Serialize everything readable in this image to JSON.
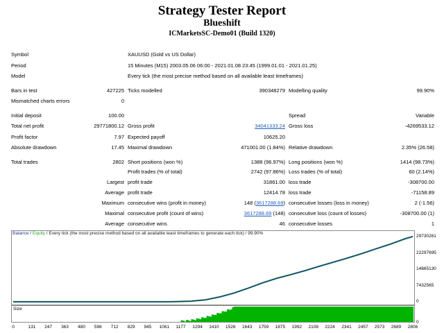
{
  "header": {
    "title": "Strategy Tester Report",
    "expert": "Blueshift",
    "server": "ICMarketsSC-Demo01 (Build 1320)"
  },
  "info": {
    "symbol_label": "Symbol",
    "symbol_value": "XAUUSD (Gold vs US Dollar)",
    "period_label": "Period",
    "period_value": "15 Minutes (M15) 2003.05.06 06:00 - 2021.01.08 23:45 (1999.01.01 - 2021.01.25)",
    "model_label": "Model",
    "model_value": "Every tick (the most precise method based on all available least timeframes)"
  },
  "stats": {
    "bars_label": "Bars in test",
    "bars_value": "427225",
    "ticks_label": "Ticks modelled",
    "ticks_value": "390348279",
    "quality_label": "Modelling quality",
    "quality_value": "99.90%",
    "mismatch_label": "Mismatched charts errors",
    "mismatch_value": "0",
    "deposit_label": "Initial deposit",
    "deposit_value": "100.00",
    "spread_label": "Spread",
    "spread_value": "Variable",
    "netprofit_label": "Total net profit",
    "netprofit_value": "29771800.12",
    "grossprofit_label": "Gross profit",
    "grossprofit_value": "34041333.24",
    "grossloss_label": "Gross loss",
    "grossloss_value": "-4269533.12",
    "pf_label": "Profit factor",
    "pf_value": "7.97",
    "payoff_label": "Expected payoff",
    "payoff_value": "10625.20",
    "absdd_label": "Absolute drawdown",
    "absdd_value": "17.45",
    "maxdd_label": "Maximal drawdown",
    "maxdd_value": "471001.00 (1.84%)",
    "reldd_label": "Relative drawdown",
    "reldd_value": "2.35% (26.58)",
    "trades_label": "Total trades",
    "trades_value": "2802",
    "short_label": "Short positions (won %)",
    "short_value": "1388 (96.97%)",
    "long_label": "Long positions (won %)",
    "long_value": "1414 (98.73%)",
    "pt_label": "Profit trades (% of total)",
    "pt_value": "2742 (97.86%)",
    "lt_label": "Loss trades (% of total)",
    "lt_value": "60 (2.14%)",
    "largest_label": "Largest",
    "largest_profit_label": "profit trade",
    "largest_profit_value": "31861.00",
    "largest_loss_label": "loss trade",
    "largest_loss_value": "-308700.00",
    "average_label": "Average",
    "avg_profit_label": "profit trade",
    "avg_profit_value": "12414.78",
    "avg_loss_label": "loss trade",
    "avg_loss_value": "-71158.89",
    "maximum_label": "Maximum",
    "max_cw_label": "consecutive wins (profit in money)",
    "max_cw_count": "148 (",
    "max_cw_money": "3617288.69",
    "max_cw_close": ")",
    "max_cl_label": "consecutive losses (loss in money)",
    "max_cl_value": "2 (-1.56)",
    "maximal_label": "Maximal",
    "maximal_cp_label": "consecutive profit (count of wins)",
    "maximal_cp_money": "3617288.69",
    "maximal_cp_count": " (148)",
    "maximal_cl_label": "consecutive loss (count of losses)",
    "maximal_cl_value": "-308700.00 (1)",
    "average2_label": "Average",
    "avg_cw_label": "consecutive wins",
    "avg_cw_value": "46",
    "avg_cl_label": "consecutive losses",
    "avg_cl_value": "1"
  },
  "chart_legend": {
    "balance": "Balance",
    "sep": " / ",
    "equity": "Equity",
    "rest": " / Every tick (the most precise method based on all available least timeframes to generate each tick) / 99.90%"
  },
  "chart_data": {
    "type": "line",
    "xlabel": "",
    "ylabel": "",
    "size_label": "Size",
    "y_ticks": [
      "29730261",
      "22297695",
      "14865130",
      "7432565",
      "0"
    ],
    "y_tick_values": [
      29730261,
      22297695,
      14865130,
      7432565,
      0
    ],
    "ylim": [
      0,
      29730261
    ],
    "x_ticks": [
      "0",
      "131",
      "247",
      "363",
      "480",
      "596",
      "712",
      "829",
      "945",
      "1061",
      "1177",
      "1294",
      "1410",
      "1526",
      "1643",
      "1759",
      "1875",
      "1992",
      "2108",
      "2224",
      "2341",
      "2457",
      "2573",
      "2689",
      "2806"
    ],
    "xlim": [
      0,
      2806
    ],
    "size_zero": "0",
    "colors": {
      "balance": "#1a3a9e",
      "equity": "#2aa02a",
      "size": "#00b400"
    },
    "series": [
      {
        "name": "Balance",
        "x": [
          0,
          200,
          500,
          800,
          1100,
          1250,
          1350,
          1450,
          1550,
          1650,
          1750,
          1850,
          1950,
          2050,
          2150,
          2250,
          2350,
          2450,
          2550,
          2650,
          2750,
          2806
        ],
        "values": [
          100,
          100,
          100,
          100,
          100,
          300000,
          900000,
          2200000,
          4000000,
          6200000,
          8600000,
          10700000,
          12400000,
          14200000,
          16200000,
          18100000,
          20000000,
          22000000,
          24200000,
          26300000,
          28700000,
          29771900
        ]
      }
    ]
  }
}
